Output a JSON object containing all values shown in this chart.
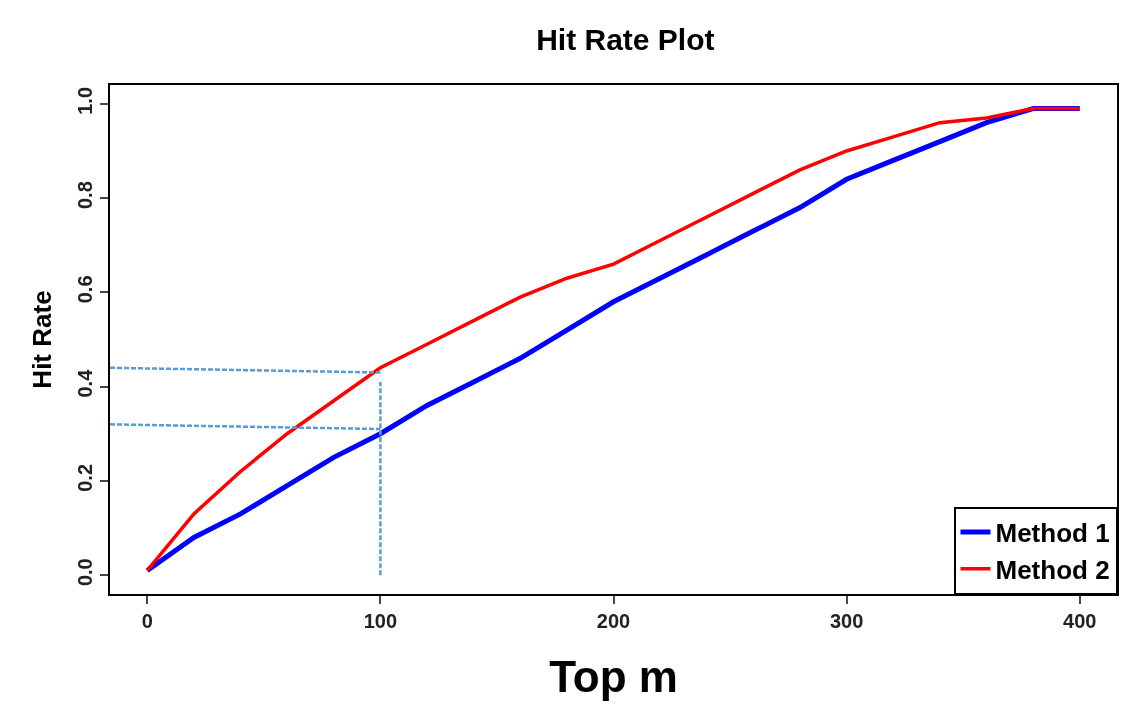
{
  "chart_data": {
    "type": "line",
    "title": "Hit Rate Plot",
    "xlabel": "Top m",
    "ylabel": "Hit Rate",
    "xlim": [
      -16,
      416
    ],
    "xticks": [
      0,
      100,
      200,
      300,
      400
    ],
    "ylim": [
      -0.04,
      1.04
    ],
    "yticks": [
      {
        "value": 0,
        "label": "0.0"
      },
      0.2,
      0.4,
      0.6,
      0.8,
      {
        "value": 1,
        "label": "1.0"
      }
    ],
    "legend": "bottom right",
    "line_style": "solid",
    "marker": "none",
    "series": [
      {
        "name": "Method 1",
        "color": "#0000ff",
        "x": [
          0,
          20,
          40,
          60,
          80,
          100,
          120,
          140,
          160,
          180,
          200,
          220,
          240,
          260,
          280,
          300,
          320,
          340,
          360,
          380,
          400
        ],
        "values": [
          0.01,
          0.08,
          0.13,
          0.19,
          0.25,
          0.3,
          0.36,
          0.41,
          0.46,
          0.52,
          0.58,
          0.63,
          0.68,
          0.73,
          0.78,
          0.84,
          0.88,
          0.92,
          0.96,
          0.99,
          0.99
        ]
      },
      {
        "name": "Method 2",
        "color": "#ff0000",
        "x": [
          0,
          10,
          20,
          40,
          60,
          80,
          100,
          120,
          140,
          160,
          180,
          200,
          220,
          240,
          260,
          280,
          300,
          320,
          340,
          360,
          380,
          400
        ],
        "values": [
          0.01,
          0.07,
          0.13,
          0.22,
          0.3,
          0.37,
          0.44,
          0.49,
          0.54,
          0.59,
          0.63,
          0.66,
          0.71,
          0.76,
          0.81,
          0.86,
          0.9,
          0.93,
          0.96,
          0.97,
          0.99,
          0.99
        ]
      },
      {
        "color": "#5b9bd5",
        "line_style": "dashed",
        "x": [
          -16,
          100
        ],
        "values": [
          0.44,
          0.43
        ]
      },
      {
        "color": "#5b9bd5",
        "line_style": "dashed",
        "x": [
          -16,
          100
        ],
        "values": [
          0.32,
          0.31
        ]
      },
      {
        "color": "#5b9bd5",
        "line_style": "dashed",
        "x": [
          100,
          100
        ],
        "values": [
          0.0,
          0.41
        ]
      }
    ]
  }
}
